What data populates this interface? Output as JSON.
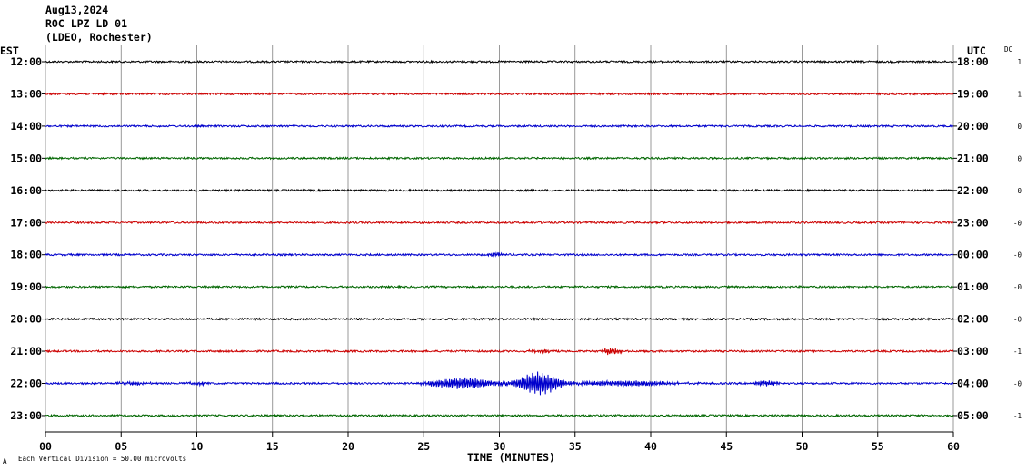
{
  "header": {
    "date": "Aug13,2024",
    "station": "ROC LPZ LD 01",
    "network": "(LDEO, Rochester)"
  },
  "labels": {
    "left_tz": "EST",
    "right_tz": "UTC",
    "dc": "DC",
    "xlabel": "TIME (MINUTES)",
    "scale_note": "Each Vertical Division =   50.00 microvolts",
    "corner_mark": "A"
  },
  "colors": {
    "cycle": [
      "#000000",
      "#cc0000",
      "#0000cc",
      "#006600"
    ],
    "grid": "#808080"
  },
  "chart_data": {
    "type": "line",
    "xlim": [
      0,
      60
    ],
    "x_ticks": [
      "00",
      "05",
      "10",
      "15",
      "20",
      "25",
      "30",
      "35",
      "40",
      "45",
      "50",
      "55",
      "60"
    ],
    "rows": [
      {
        "est": "12:00",
        "utc": "18:00",
        "dc": "1",
        "color": "#000000",
        "events": []
      },
      {
        "est": "13:00",
        "utc": "19:00",
        "dc": "1",
        "color": "#cc0000",
        "events": []
      },
      {
        "est": "14:00",
        "utc": "20:00",
        "dc": "0",
        "color": "#0000cc",
        "events": []
      },
      {
        "est": "15:00",
        "utc": "21:00",
        "dc": "0",
        "color": "#006600",
        "events": []
      },
      {
        "est": "16:00",
        "utc": "22:00",
        "dc": "0",
        "color": "#000000",
        "events": []
      },
      {
        "est": "17:00",
        "utc": "23:00",
        "dc": "-0",
        "color": "#cc0000",
        "events": []
      },
      {
        "est": "18:00",
        "utc": "00:00",
        "dc": "-0",
        "color": "#0000cc",
        "events": [
          {
            "t": 29.8,
            "w": 0.6,
            "amp": 2.5
          }
        ]
      },
      {
        "est": "19:00",
        "utc": "01:00",
        "dc": "-0",
        "color": "#006600",
        "events": []
      },
      {
        "est": "20:00",
        "utc": "02:00",
        "dc": "-0",
        "color": "#000000",
        "events": []
      },
      {
        "est": "21:00",
        "utc": "03:00",
        "dc": "-1",
        "color": "#cc0000",
        "events": [
          {
            "t": 32.8,
            "w": 1.5,
            "amp": 1.5
          },
          {
            "t": 37.4,
            "w": 0.8,
            "amp": 4
          }
        ]
      },
      {
        "est": "22:00",
        "utc": "04:00",
        "dc": "-0",
        "color": "#0000cc",
        "events": [
          {
            "t": 27.5,
            "w": 3.0,
            "amp": 6
          },
          {
            "t": 32.6,
            "w": 2.0,
            "amp": 12
          },
          {
            "t": 38.5,
            "w": 4.5,
            "amp": 3
          },
          {
            "t": 47.5,
            "w": 1.2,
            "amp": 3
          },
          {
            "t": 5.8,
            "w": 1.5,
            "amp": 1.5
          },
          {
            "t": 10,
            "w": 1.5,
            "amp": 1.2
          }
        ]
      },
      {
        "est": "23:00",
        "utc": "05:00",
        "dc": "-1",
        "color": "#006600",
        "events": []
      }
    ]
  }
}
